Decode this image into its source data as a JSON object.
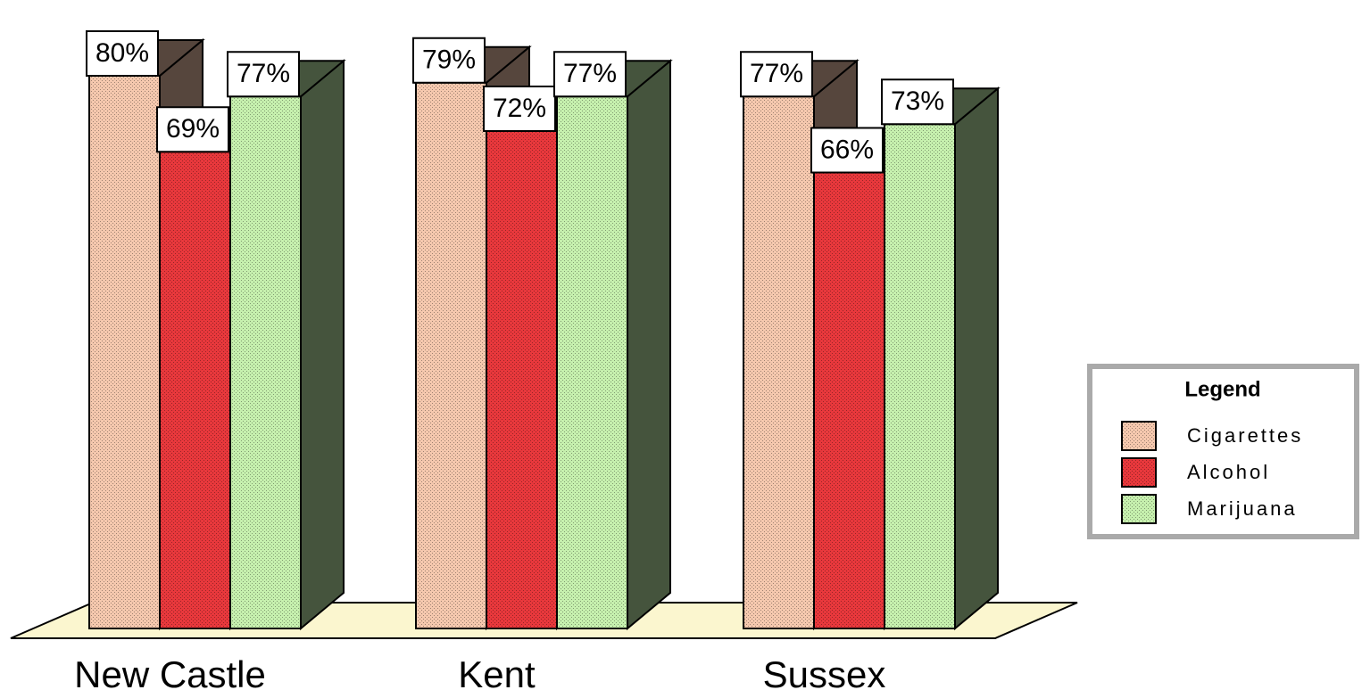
{
  "chart_data": {
    "type": "bar3d",
    "categories": [
      "New Castle",
      "Kent",
      "Sussex"
    ],
    "series": [
      {
        "name": "Cigarettes",
        "color": "#f5c8ae",
        "values": [
          80,
          79,
          77
        ],
        "value_labels": [
          "80%",
          "79%",
          "77%"
        ]
      },
      {
        "name": "Alcohol",
        "color": "#e8383c",
        "values": [
          69,
          72,
          66
        ],
        "value_labels": [
          "69%",
          "72%",
          "66%"
        ]
      },
      {
        "name": "Marijuana",
        "color": "#c6f0ae",
        "values": [
          77,
          77,
          73
        ],
        "value_labels": [
          "77%",
          "77%",
          "73%"
        ]
      }
    ],
    "legend": {
      "title": "Legend",
      "position": "right"
    }
  }
}
